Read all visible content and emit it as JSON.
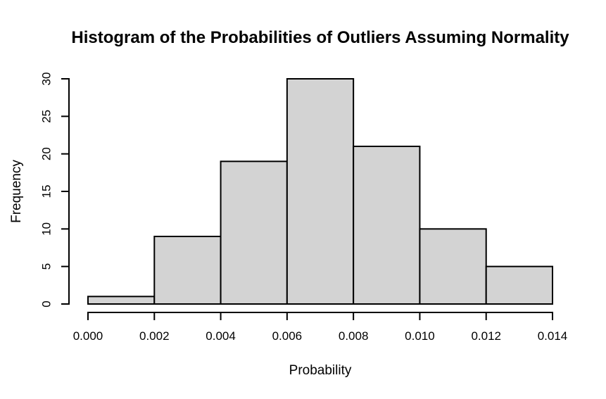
{
  "chart_data": {
    "type": "bar",
    "subtype": "histogram",
    "title": "Histogram of the Probabilities of Outliers Assuming Normality",
    "xlabel": "Probability",
    "ylabel": "Frequency",
    "bin_width": 0.002,
    "bin_edges": [
      0.0,
      0.002,
      0.004,
      0.006,
      0.008,
      0.01,
      0.012,
      0.014
    ],
    "counts": [
      1,
      9,
      19,
      30,
      21,
      10,
      5
    ],
    "x_tick_values": [
      0.0,
      0.002,
      0.004,
      0.006,
      0.008,
      0.01,
      0.012,
      0.014
    ],
    "x_tick_labels": [
      "0.000",
      "0.002",
      "0.004",
      "0.006",
      "0.008",
      "0.010",
      "0.012",
      "0.014"
    ],
    "y_tick_values": [
      0,
      5,
      10,
      15,
      20,
      25,
      30
    ],
    "y_tick_labels": [
      "0",
      "5",
      "10",
      "15",
      "20",
      "25",
      "30"
    ],
    "xlim": [
      0.0,
      0.014
    ],
    "ylim": [
      0,
      30
    ],
    "grid": false,
    "legend": null,
    "colors": {
      "bar_fill": "#d3d3d3",
      "bar_stroke": "#000000",
      "axis": "#000000",
      "text": "#000000",
      "background": "#ffffff"
    }
  }
}
